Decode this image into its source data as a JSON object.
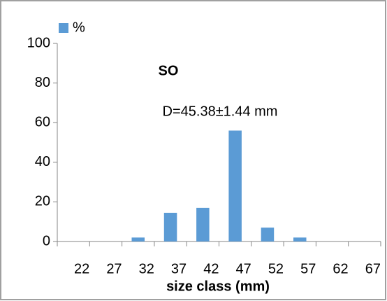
{
  "chart_data": {
    "type": "bar",
    "categories": [
      "22",
      "27",
      "32",
      "37",
      "42",
      "47",
      "52",
      "57",
      "62",
      "67"
    ],
    "series": [
      {
        "name": "%",
        "color": "#5b9bd5",
        "values": [
          0,
          0,
          2,
          14.5,
          17,
          56,
          7,
          2,
          0,
          0
        ]
      }
    ],
    "ylim": [
      0,
      100
    ],
    "yticks": [
      0,
      20,
      40,
      60,
      80,
      100
    ],
    "xlabel": "size class (mm)",
    "annotations": [
      "SO",
      "D=45.38±1.44 mm"
    ],
    "legend": "top-left",
    "grid": false
  }
}
